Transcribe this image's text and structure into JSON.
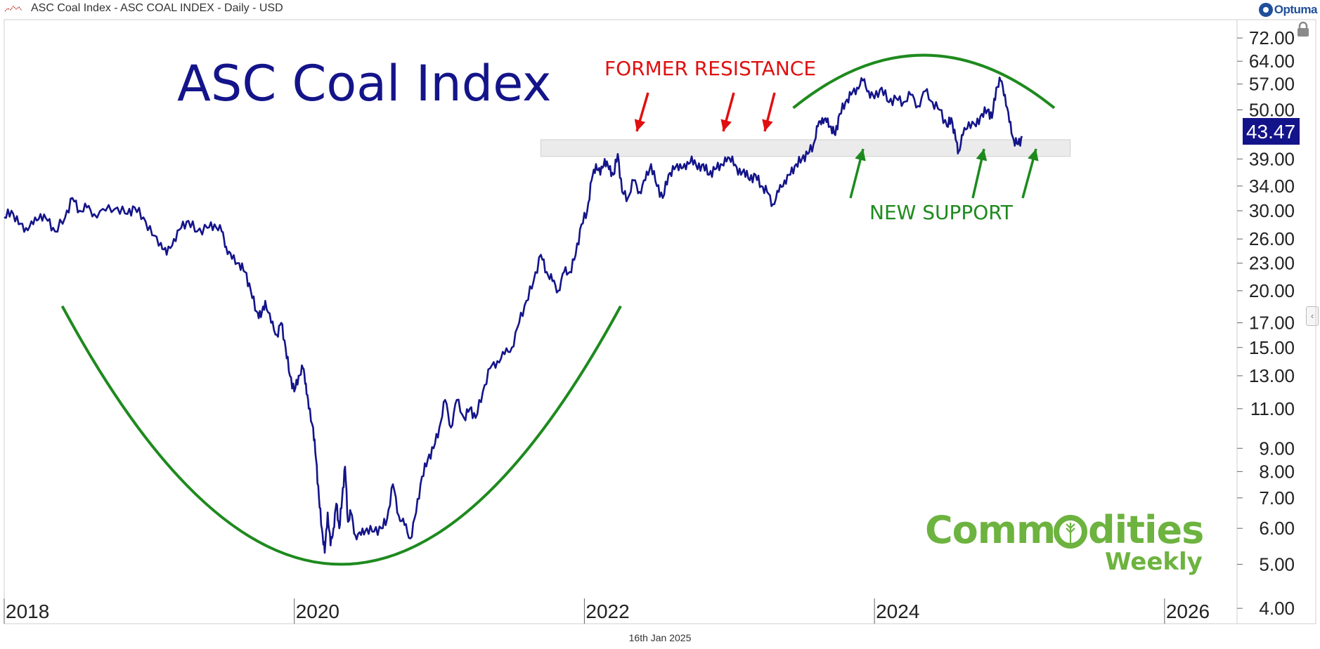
{
  "header": {
    "title": "ASC Coal Index - ASC COAL INDEX - Daily - USD",
    "brand": "Optuma"
  },
  "footer": {
    "date": "16th Jan 2025"
  },
  "colors": {
    "series": "#14148a",
    "green": "#1e8a1e",
    "red": "#e01010",
    "brand_green": "#6db33f",
    "last_badge": "#14148a"
  },
  "chart_data": {
    "type": "line",
    "title": "ASC Coal Index",
    "y_scale": "log",
    "ylim": [
      3.7,
      79
    ],
    "xlim": [
      2018.0,
      2026.5
    ],
    "y_ticks": [
      "72.00",
      "64.00",
      "57.00",
      "50.00",
      "39.00",
      "34.00",
      "30.00",
      "26.00",
      "23.00",
      "20.00",
      "17.00",
      "15.00",
      "13.00",
      "11.00",
      "9.00",
      "8.00",
      "7.00",
      "6.00",
      "5.00",
      "4.00"
    ],
    "x_ticks": [
      "2018",
      "2020",
      "2022",
      "2024",
      "2026"
    ],
    "last_value": "43.47",
    "support_zone": [
      39.5,
      43.0
    ],
    "annotations": {
      "former_resistance": "FORMER RESISTANCE",
      "new_support": "NEW SUPPORT"
    },
    "series": [
      {
        "values": [
          [
            2018.0,
            29.0
          ],
          [
            2018.05,
            30.0
          ],
          [
            2018.1,
            28.0
          ],
          [
            2018.15,
            27.5
          ],
          [
            2018.2,
            28.0
          ],
          [
            2018.25,
            29.5
          ],
          [
            2018.3,
            28.5
          ],
          [
            2018.35,
            27.0
          ],
          [
            2018.42,
            29.0
          ],
          [
            2018.47,
            32.0
          ],
          [
            2018.52,
            30.0
          ],
          [
            2018.57,
            30.5
          ],
          [
            2018.62,
            29.5
          ],
          [
            2018.7,
            30.0
          ],
          [
            2018.78,
            30.5
          ],
          [
            2018.85,
            29.5
          ],
          [
            2018.9,
            30.5
          ],
          [
            2018.96,
            29.0
          ],
          [
            2019.02,
            26.5
          ],
          [
            2019.08,
            25.5
          ],
          [
            2019.12,
            24.0
          ],
          [
            2019.17,
            26.0
          ],
          [
            2019.22,
            27.5
          ],
          [
            2019.27,
            28.5
          ],
          [
            2019.33,
            27.0
          ],
          [
            2019.4,
            27.5
          ],
          [
            2019.45,
            28.0
          ],
          [
            2019.5,
            27.0
          ],
          [
            2019.53,
            25.0
          ],
          [
            2019.57,
            23.5
          ],
          [
            2019.62,
            23.0
          ],
          [
            2019.66,
            22.0
          ],
          [
            2019.7,
            20.0
          ],
          [
            2019.74,
            18.0
          ],
          [
            2019.77,
            17.5
          ],
          [
            2019.8,
            19.0
          ],
          [
            2019.84,
            17.0
          ],
          [
            2019.88,
            16.0
          ],
          [
            2019.91,
            17.0
          ],
          [
            2019.94,
            15.0
          ],
          [
            2019.97,
            13.0
          ],
          [
            2020.0,
            12.0
          ],
          [
            2020.03,
            13.0
          ],
          [
            2020.06,
            13.5
          ],
          [
            2020.08,
            12.5
          ],
          [
            2020.1,
            11.0
          ],
          [
            2020.13,
            10.0
          ],
          [
            2020.15,
            8.5
          ],
          [
            2020.17,
            7.0
          ],
          [
            2020.19,
            6.0
          ],
          [
            2020.21,
            5.3
          ],
          [
            2020.23,
            6.5
          ],
          [
            2020.25,
            5.5
          ],
          [
            2020.27,
            6.0
          ],
          [
            2020.29,
            6.8
          ],
          [
            2020.31,
            6.0
          ],
          [
            2020.33,
            7.0
          ],
          [
            2020.35,
            8.2
          ],
          [
            2020.37,
            6.2
          ],
          [
            2020.39,
            6.5
          ],
          [
            2020.42,
            5.8
          ],
          [
            2020.46,
            5.8
          ],
          [
            2020.5,
            6.0
          ],
          [
            2020.55,
            5.9
          ],
          [
            2020.6,
            6.0
          ],
          [
            2020.64,
            6.3
          ],
          [
            2020.68,
            7.5
          ],
          [
            2020.72,
            6.4
          ],
          [
            2020.76,
            6.1
          ],
          [
            2020.8,
            5.7
          ],
          [
            2020.84,
            6.5
          ],
          [
            2020.88,
            7.8
          ],
          [
            2020.92,
            8.5
          ],
          [
            2020.96,
            9.0
          ],
          [
            2021.0,
            10.0
          ],
          [
            2021.04,
            11.5
          ],
          [
            2021.08,
            10.0
          ],
          [
            2021.12,
            11.5
          ],
          [
            2021.17,
            10.5
          ],
          [
            2021.21,
            11.0
          ],
          [
            2021.25,
            10.5
          ],
          [
            2021.3,
            12.0
          ],
          [
            2021.35,
            13.5
          ],
          [
            2021.4,
            14.0
          ],
          [
            2021.45,
            14.5
          ],
          [
            2021.5,
            15.0
          ],
          [
            2021.55,
            17.0
          ],
          [
            2021.6,
            19.0
          ],
          [
            2021.65,
            21.0
          ],
          [
            2021.7,
            24.0
          ],
          [
            2021.74,
            22.0
          ],
          [
            2021.78,
            21.0
          ],
          [
            2021.82,
            20.0
          ],
          [
            2021.86,
            22.0
          ],
          [
            2021.9,
            22.0
          ],
          [
            2021.94,
            24.0
          ],
          [
            2021.98,
            28.0
          ],
          [
            2022.02,
            30.0
          ],
          [
            2022.05,
            35.0
          ],
          [
            2022.08,
            38.0
          ],
          [
            2022.11,
            36.0
          ],
          [
            2022.14,
            39.0
          ],
          [
            2022.17,
            37.0
          ],
          [
            2022.2,
            36.0
          ],
          [
            2022.23,
            40.0
          ],
          [
            2022.26,
            33.0
          ],
          [
            2022.3,
            32.0
          ],
          [
            2022.34,
            35.0
          ],
          [
            2022.38,
            33.0
          ],
          [
            2022.42,
            35.0
          ],
          [
            2022.46,
            38.0
          ],
          [
            2022.5,
            34.0
          ],
          [
            2022.54,
            32.0
          ],
          [
            2022.58,
            36.0
          ],
          [
            2022.62,
            37.0
          ],
          [
            2022.66,
            38.0
          ],
          [
            2022.7,
            37.0
          ],
          [
            2022.74,
            39.5
          ],
          [
            2022.78,
            37.0
          ],
          [
            2022.82,
            38.0
          ],
          [
            2022.86,
            36.0
          ],
          [
            2022.9,
            37.0
          ],
          [
            2022.94,
            38.0
          ],
          [
            2022.98,
            38.5
          ],
          [
            2023.02,
            39.5
          ],
          [
            2023.06,
            36.0
          ],
          [
            2023.1,
            37.0
          ],
          [
            2023.14,
            35.0
          ],
          [
            2023.18,
            36.0
          ],
          [
            2023.22,
            34.0
          ],
          [
            2023.26,
            33.0
          ],
          [
            2023.3,
            31.0
          ],
          [
            2023.34,
            33.0
          ],
          [
            2023.38,
            35.0
          ],
          [
            2023.42,
            36.0
          ],
          [
            2023.46,
            38.0
          ],
          [
            2023.5,
            39.0
          ],
          [
            2023.54,
            40.0
          ],
          [
            2023.58,
            42.0
          ],
          [
            2023.61,
            46.0
          ],
          [
            2023.64,
            48.0
          ],
          [
            2023.67,
            47.0
          ],
          [
            2023.7,
            46.0
          ],
          [
            2023.73,
            44.0
          ],
          [
            2023.76,
            49.0
          ],
          [
            2023.8,
            52.0
          ],
          [
            2023.84,
            54.0
          ],
          [
            2023.88,
            56.0
          ],
          [
            2023.92,
            58.0
          ],
          [
            2023.96,
            55.0
          ],
          [
            2024.0,
            53.0
          ],
          [
            2024.05,
            56.0
          ],
          [
            2024.1,
            52.0
          ],
          [
            2024.15,
            53.0
          ],
          [
            2024.2,
            52.0
          ],
          [
            2024.25,
            54.0
          ],
          [
            2024.3,
            51.0
          ],
          [
            2024.35,
            55.0
          ],
          [
            2024.4,
            52.0
          ],
          [
            2024.45,
            50.0
          ],
          [
            2024.5,
            46.0
          ],
          [
            2024.53,
            48.0
          ],
          [
            2024.56,
            43.0
          ],
          [
            2024.58,
            40.5
          ],
          [
            2024.61,
            44.0
          ],
          [
            2024.65,
            47.0
          ],
          [
            2024.7,
            46.0
          ],
          [
            2024.74,
            49.0
          ],
          [
            2024.78,
            50.0
          ],
          [
            2024.81,
            48.0
          ],
          [
            2024.84,
            56.0
          ],
          [
            2024.87,
            58.0
          ],
          [
            2024.9,
            54.0
          ],
          [
            2024.93,
            47.0
          ],
          [
            2024.96,
            43.0
          ],
          [
            2024.99,
            42.0
          ],
          [
            2025.02,
            43.47
          ]
        ]
      }
    ]
  }
}
